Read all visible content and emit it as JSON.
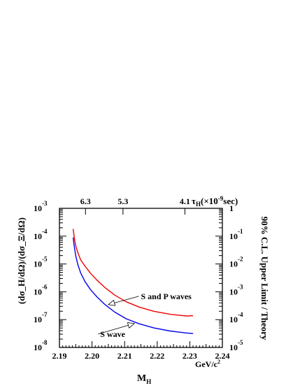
{
  "chart_data": {
    "type": "line",
    "xlabel": "M",
    "xlabel_sub": "H",
    "x_unit": "GeV/c",
    "x_unit_sup": "2",
    "xlim": [
      2.19,
      2.24
    ],
    "x_ticks": [
      "2.19",
      "2.20",
      "2.21",
      "2.22",
      "2.23",
      "2.24"
    ],
    "ylabel_left": "(dσ_H/dΩ)/(dσ_Ξ/dΩ)",
    "y_left_log_range": [
      -8,
      -3
    ],
    "y_left_ticks": [
      {
        "base": "10",
        "exp": "-3"
      },
      {
        "base": "10",
        "exp": "-4"
      },
      {
        "base": "10",
        "exp": "-5"
      },
      {
        "base": "10",
        "exp": "-6"
      },
      {
        "base": "10",
        "exp": "-7"
      },
      {
        "base": "10",
        "exp": "-8"
      }
    ],
    "ylabel_right": "90% C.L. Upper Limit / Theory",
    "y_right_log_range": [
      -5,
      0
    ],
    "y_right_ticks": [
      {
        "base": "1",
        "exp": ""
      },
      {
        "base": "10",
        "exp": "-1"
      },
      {
        "base": "10",
        "exp": "-2"
      },
      {
        "base": "10",
        "exp": "-3"
      },
      {
        "base": "10",
        "exp": "-4"
      },
      {
        "base": "10",
        "exp": "-5"
      }
    ],
    "top_axis_label": "τ",
    "top_axis_label_sub": "H",
    "top_axis_label_rest": "(×10",
    "top_axis_label_sup": "-9",
    "top_axis_label_end": "sec)",
    "top_ticks": [
      {
        "label": "6.3",
        "x": 2.198
      },
      {
        "label": "5.3",
        "x": 2.2095
      },
      {
        "label": "4.1",
        "x": 2.2285
      }
    ],
    "series": [
      {
        "name": "S and P waves",
        "color": "#ee0000",
        "log_right": [
          [
            2.1942,
            -0.74
          ],
          [
            2.1946,
            -1.08
          ],
          [
            2.195,
            -1.35
          ],
          [
            2.1956,
            -1.58
          ],
          [
            2.1965,
            -1.85
          ],
          [
            2.1978,
            -2.07
          ],
          [
            2.1995,
            -2.33
          ],
          [
            2.2015,
            -2.58
          ],
          [
            2.204,
            -2.85
          ],
          [
            2.207,
            -3.12
          ],
          [
            2.2105,
            -3.36
          ],
          [
            2.2145,
            -3.55
          ],
          [
            2.219,
            -3.7
          ],
          [
            2.224,
            -3.81
          ],
          [
            2.229,
            -3.87
          ],
          [
            2.231,
            -3.86
          ]
        ]
      },
      {
        "name": "S wave",
        "color": "#0000ee",
        "log_right": [
          [
            2.1942,
            -1.05
          ],
          [
            2.1946,
            -1.4
          ],
          [
            2.195,
            -1.7
          ],
          [
            2.1956,
            -2.0
          ],
          [
            2.1965,
            -2.32
          ],
          [
            2.1978,
            -2.62
          ],
          [
            2.1995,
            -2.92
          ],
          [
            2.2015,
            -3.18
          ],
          [
            2.204,
            -3.46
          ],
          [
            2.207,
            -3.73
          ],
          [
            2.2105,
            -3.97
          ],
          [
            2.2145,
            -4.15
          ],
          [
            2.219,
            -4.3
          ],
          [
            2.224,
            -4.41
          ],
          [
            2.229,
            -4.48
          ],
          [
            2.231,
            -4.5
          ]
        ]
      }
    ],
    "annotations": [
      {
        "text": "S and P waves",
        "text_at": [
          2.215,
          -3.16
        ],
        "arrow_to": [
          2.205,
          -3.46
        ]
      },
      {
        "text": "S wave",
        "text_at": [
          2.2025,
          -4.52
        ],
        "arrow_to": [
          2.213,
          -4.14
        ]
      }
    ]
  }
}
